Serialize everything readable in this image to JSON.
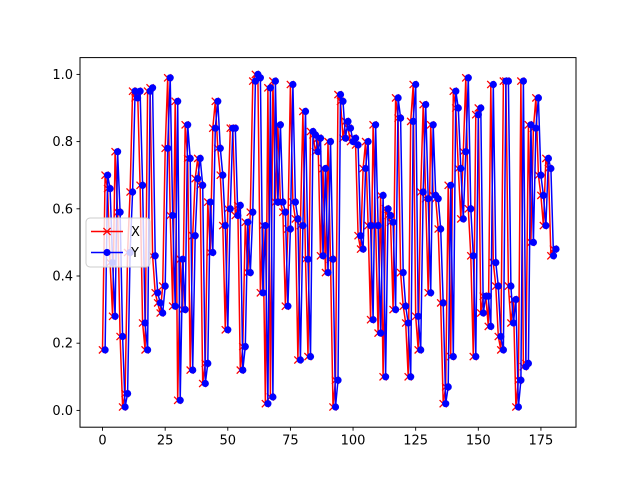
{
  "figure": {
    "background": "#ffffff"
  },
  "chart_data": {
    "type": "line",
    "title": "",
    "xlabel": "",
    "ylabel": "",
    "grid": false,
    "xlim": [
      -9,
      189
    ],
    "ylim": [
      -0.05,
      1.05
    ],
    "xticks": [
      0,
      25,
      50,
      75,
      100,
      125,
      150,
      175
    ],
    "xticklabels": [
      "0",
      "25",
      "50",
      "75",
      "100",
      "125",
      "150",
      "175"
    ],
    "yticks": [
      0.0,
      0.2,
      0.4,
      0.6,
      0.8,
      1.0
    ],
    "yticklabels": [
      "0.0",
      "0.2",
      "0.4",
      "0.6",
      "0.8",
      "1.0"
    ],
    "legend": {
      "location": "center left",
      "background": "#ffffff",
      "border_color": "#cccccc",
      "entries": [
        {
          "label": "X",
          "color": "#ff0000",
          "marker": "x"
        },
        {
          "label": "Y",
          "color": "#0000ff",
          "marker": "circle"
        }
      ]
    },
    "series": [
      {
        "name": "X",
        "color": "#ff0000",
        "marker": "x",
        "line_style": "solid",
        "x_start": 0,
        "x_step": 1,
        "x_offset": 0,
        "values": [
          0.18,
          0.7,
          0.66,
          0.44,
          0.28,
          0.77,
          0.59,
          0.22,
          0.01,
          0.05,
          0.47,
          0.65,
          0.95,
          0.93,
          0.95,
          0.67,
          0.26,
          0.18,
          0.95,
          0.96,
          0.46,
          0.35,
          0.32,
          0.29,
          0.37,
          0.78,
          0.99,
          0.58,
          0.31,
          0.92,
          0.03,
          0.45,
          0.3,
          0.85,
          0.75,
          0.12,
          0.52,
          0.69,
          0.75,
          0.67,
          0.08,
          0.14,
          0.62,
          0.47,
          0.84,
          0.92,
          0.78,
          0.7,
          0.55,
          0.24,
          0.6,
          0.84,
          0.84,
          0.58,
          0.61,
          0.12,
          0.19,
          0.56,
          0.41,
          0.59,
          0.98,
          1.0,
          0.99,
          0.35,
          0.55,
          0.02,
          0.96,
          0.04,
          0.98,
          0.62,
          0.85,
          0.62,
          0.59,
          0.31,
          0.54,
          0.97,
          0.62,
          0.57,
          0.15,
          0.55,
          0.89,
          0.45,
          0.16,
          0.83,
          0.82,
          0.77,
          0.81,
          0.46,
          0.72,
          0.41,
          0.8,
          0.45,
          0.01,
          0.09,
          0.94,
          0.92,
          0.81,
          0.86,
          0.84,
          0.8,
          0.81,
          0.79,
          0.52,
          0.48,
          0.72,
          0.8,
          0.55,
          0.27,
          0.85,
          0.55,
          0.23,
          0.64,
          0.1,
          0.6,
          0.58,
          0.56,
          0.3,
          0.93,
          0.87,
          0.41,
          0.31,
          0.26,
          0.1,
          0.86,
          0.97,
          0.28,
          0.18,
          0.65,
          0.91,
          0.63,
          0.35,
          0.85,
          0.64,
          0.63,
          0.54,
          0.32,
          0.02,
          0.07,
          0.67,
          0.16,
          0.95,
          0.9,
          0.72,
          0.57,
          0.77,
          0.99,
          0.6,
          0.46,
          0.16,
          0.88,
          0.9,
          0.29,
          0.34,
          0.34,
          0.25,
          0.97,
          0.44,
          0.37,
          0.22,
          0.18,
          0.98,
          0.98,
          0.37,
          0.26,
          0.33,
          0.01,
          0.09,
          0.98,
          0.13,
          0.14,
          0.85,
          0.5,
          0.84,
          0.93,
          0.7,
          0.64,
          0.55,
          0.75,
          0.72,
          0.46,
          0.48
        ]
      },
      {
        "name": "Y",
        "color": "#0000ff",
        "marker": "circle",
        "line_style": "solid",
        "x_start": 0,
        "x_step": 1,
        "x_offset": 1,
        "values": [
          0.18,
          0.7,
          0.66,
          0.44,
          0.28,
          0.77,
          0.59,
          0.22,
          0.01,
          0.05,
          0.47,
          0.65,
          0.95,
          0.93,
          0.95,
          0.67,
          0.26,
          0.18,
          0.95,
          0.96,
          0.46,
          0.35,
          0.32,
          0.29,
          0.37,
          0.78,
          0.99,
          0.58,
          0.31,
          0.92,
          0.03,
          0.45,
          0.3,
          0.85,
          0.75,
          0.12,
          0.52,
          0.69,
          0.75,
          0.67,
          0.08,
          0.14,
          0.62,
          0.47,
          0.84,
          0.92,
          0.78,
          0.7,
          0.55,
          0.24,
          0.6,
          0.84,
          0.84,
          0.58,
          0.61,
          0.12,
          0.19,
          0.56,
          0.41,
          0.59,
          0.98,
          1.0,
          0.99,
          0.35,
          0.55,
          0.02,
          0.96,
          0.04,
          0.98,
          0.62,
          0.85,
          0.62,
          0.59,
          0.31,
          0.54,
          0.97,
          0.62,
          0.57,
          0.15,
          0.55,
          0.89,
          0.45,
          0.16,
          0.83,
          0.82,
          0.77,
          0.81,
          0.46,
          0.72,
          0.41,
          0.8,
          0.45,
          0.01,
          0.09,
          0.94,
          0.92,
          0.81,
          0.86,
          0.84,
          0.8,
          0.81,
          0.79,
          0.52,
          0.48,
          0.72,
          0.8,
          0.55,
          0.27,
          0.85,
          0.55,
          0.23,
          0.64,
          0.1,
          0.6,
          0.58,
          0.56,
          0.3,
          0.93,
          0.87,
          0.41,
          0.31,
          0.26,
          0.1,
          0.86,
          0.97,
          0.28,
          0.18,
          0.65,
          0.91,
          0.63,
          0.35,
          0.85,
          0.64,
          0.63,
          0.54,
          0.32,
          0.02,
          0.07,
          0.67,
          0.16,
          0.95,
          0.9,
          0.72,
          0.57,
          0.77,
          0.99,
          0.6,
          0.46,
          0.16,
          0.88,
          0.9,
          0.29,
          0.34,
          0.34,
          0.25,
          0.97,
          0.44,
          0.37,
          0.22,
          0.18,
          0.98,
          0.98,
          0.37,
          0.26,
          0.33,
          0.01,
          0.09,
          0.98,
          0.13,
          0.14,
          0.85,
          0.5,
          0.84,
          0.93,
          0.7,
          0.64,
          0.55,
          0.75,
          0.72,
          0.46,
          0.48
        ]
      }
    ]
  }
}
